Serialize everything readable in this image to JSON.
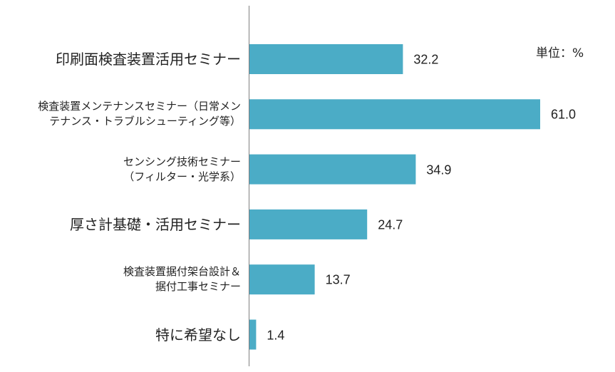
{
  "chart_data": {
    "type": "bar",
    "orientation": "horizontal",
    "unit_label": "単位：%",
    "bar_color": "#4bacc6",
    "categories": [
      [
        "印刷面検査装置活用セミナー"
      ],
      [
        "検査装置メンテナンスセミナー（日常メン",
        "テナンス・トラブルシューティング等）"
      ],
      [
        "センシング技術セミナー",
        "（フィルター・光学系）"
      ],
      [
        "厚さ計基礎・活用セミナー"
      ],
      [
        "検査装置据付架台設計＆",
        "据付工事セミナー"
      ],
      [
        "特に希望なし"
      ]
    ],
    "values": [
      32.2,
      61.0,
      34.9,
      24.7,
      13.7,
      1.4
    ],
    "value_labels": [
      "32.2",
      "61.0",
      "34.9",
      "24.7",
      "13.7",
      "1.4"
    ],
    "xlim": [
      0,
      100
    ],
    "grid": false,
    "legend": "none"
  }
}
